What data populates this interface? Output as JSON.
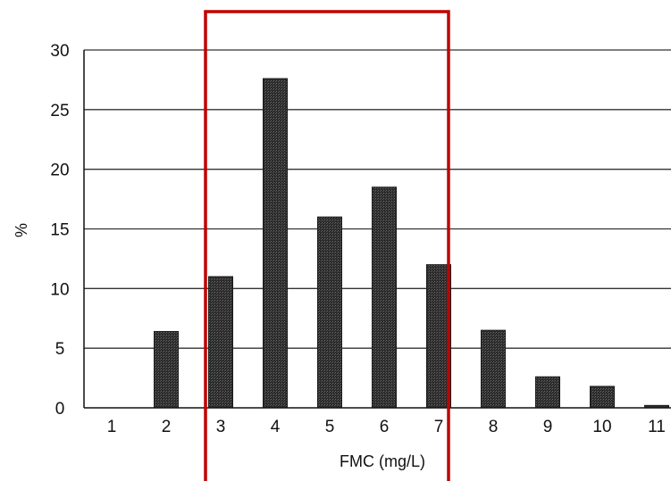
{
  "chart_data": {
    "type": "bar",
    "title": "",
    "xlabel": "FMC (mg/L)",
    "ylabel": "%",
    "ylim": [
      0,
      30
    ],
    "yticks": [
      "0",
      "5",
      "10",
      "15",
      "20",
      "25",
      "30"
    ],
    "grid": true,
    "categories": [
      "1",
      "2",
      "3",
      "4",
      "5",
      "6",
      "7",
      "8",
      "9",
      "10",
      "11"
    ],
    "values": [
      0,
      6.4,
      11.0,
      27.6,
      16.0,
      18.5,
      12.0,
      6.5,
      2.6,
      1.8,
      0.2
    ],
    "highlighted_categories": [
      "3",
      "4",
      "5",
      "6",
      "7"
    ],
    "colors": {
      "bar": "#2b2b2b",
      "highlight_box": "#c00000",
      "axis": "#111111",
      "grid": "#333333"
    }
  }
}
